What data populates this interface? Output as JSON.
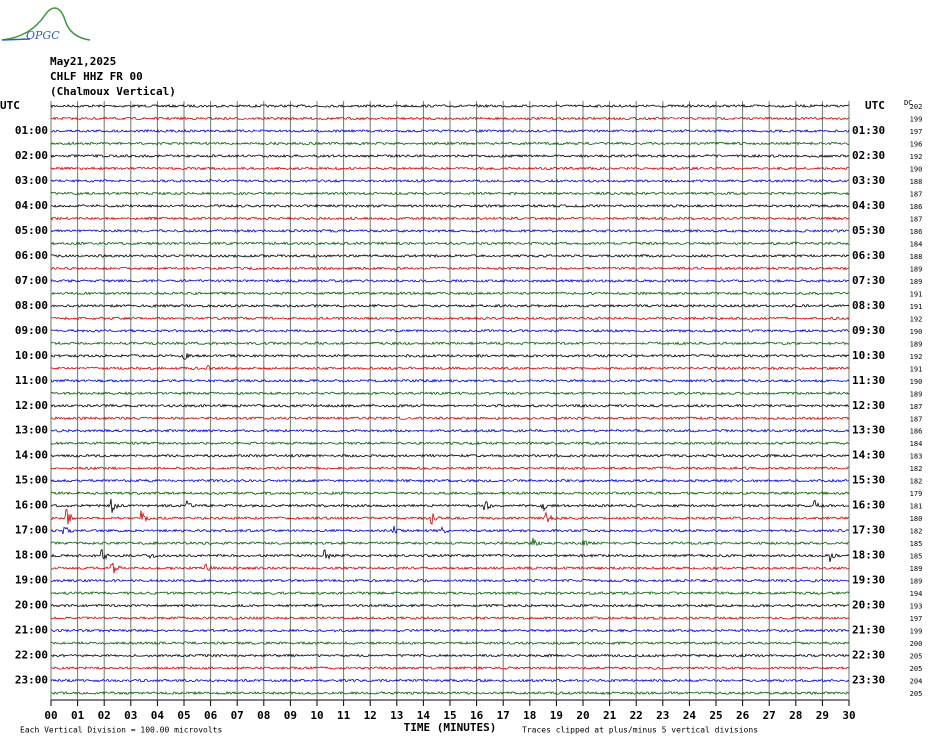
{
  "logo": "OPGC",
  "header": {
    "date": "May21,2025",
    "station": "CHLF HHZ FR 00",
    "component": "(Chalmoux Vertical)"
  },
  "left_axis": {
    "title": "UTC",
    "labels": [
      "01:00",
      "02:00",
      "03:00",
      "04:00",
      "05:00",
      "06:00",
      "07:00",
      "08:00",
      "09:00",
      "10:00",
      "11:00",
      "12:00",
      "13:00",
      "14:00",
      "15:00",
      "16:00",
      "17:00",
      "18:00",
      "19:00",
      "20:00",
      "21:00",
      "22:00",
      "23:00"
    ]
  },
  "right_axis": {
    "title": "UTC",
    "labels": [
      "01:30",
      "02:30",
      "03:30",
      "04:30",
      "05:30",
      "06:30",
      "07:30",
      "08:30",
      "09:30",
      "10:30",
      "11:30",
      "12:30",
      "13:30",
      "14:30",
      "15:30",
      "16:30",
      "17:30",
      "18:30",
      "19:30",
      "20:30",
      "21:30",
      "22:30",
      "23:30"
    ]
  },
  "dc": {
    "title": "DC",
    "values": [
      202,
      199,
      197,
      196,
      192,
      190,
      188,
      187,
      186,
      187,
      186,
      184,
      188,
      189,
      189,
      191,
      191,
      192,
      190,
      189,
      192,
      191,
      190,
      189,
      187,
      187,
      186,
      184,
      183,
      182,
      182,
      179,
      181,
      180,
      182,
      185,
      185,
      189,
      189,
      194,
      193,
      197,
      199,
      200,
      205,
      205,
      204,
      205
    ]
  },
  "x_axis": {
    "title": "TIME (MINUTES)",
    "ticks": [
      "00",
      "01",
      "02",
      "03",
      "04",
      "05",
      "06",
      "07",
      "08",
      "09",
      "10",
      "11",
      "12",
      "13",
      "14",
      "15",
      "16",
      "17",
      "18",
      "19",
      "20",
      "21",
      "22",
      "23",
      "24",
      "25",
      "26",
      "27",
      "28",
      "29",
      "30"
    ]
  },
  "footer": {
    "scale": "Each Vertical Division =  100.00 microvolts",
    "clip": "Traces clipped at plus/minus 5 vertical divisions"
  }
}
